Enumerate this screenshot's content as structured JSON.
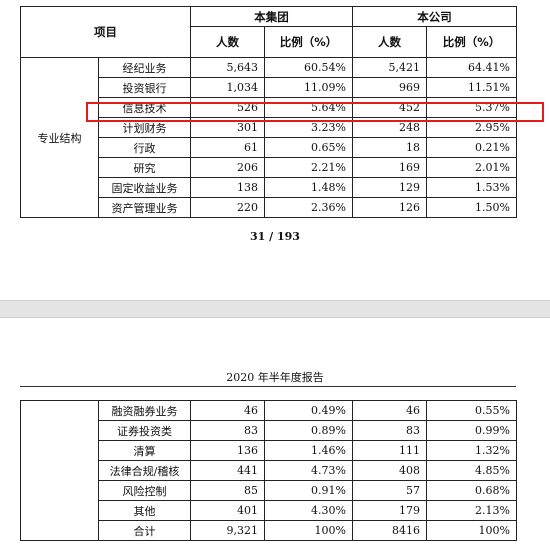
{
  "header": {
    "item": "项目",
    "group": "本集团",
    "company": "本公司",
    "count": "人数",
    "ratio": "比例（%）"
  },
  "category": "专业结构",
  "rows_page1": [
    {
      "label": "经纪业务",
      "g_count": "5,643",
      "g_ratio": "60.54%",
      "c_count": "5,421",
      "c_ratio": "64.41%"
    },
    {
      "label": "投资银行",
      "g_count": "1,034",
      "g_ratio": "11.09%",
      "c_count": "969",
      "c_ratio": "11.51%"
    },
    {
      "label": "信息技术",
      "g_count": "526",
      "g_ratio": "5.64%",
      "c_count": "452",
      "c_ratio": "5.37%"
    },
    {
      "label": "计划财务",
      "g_count": "301",
      "g_ratio": "3.23%",
      "c_count": "248",
      "c_ratio": "2.95%"
    },
    {
      "label": "行政",
      "g_count": "61",
      "g_ratio": "0.65%",
      "c_count": "18",
      "c_ratio": "0.21%"
    },
    {
      "label": "研究",
      "g_count": "206",
      "g_ratio": "2.21%",
      "c_count": "169",
      "c_ratio": "2.01%"
    },
    {
      "label": "固定收益业务",
      "g_count": "138",
      "g_ratio": "1.48%",
      "c_count": "129",
      "c_ratio": "1.53%"
    },
    {
      "label": "资产管理业务",
      "g_count": "220",
      "g_ratio": "2.36%",
      "c_count": "126",
      "c_ratio": "1.50%"
    }
  ],
  "page_number": "31 / 193",
  "report_title": "2020 年半年度报告",
  "rows_page2": [
    {
      "label": "融资融券业务",
      "g_count": "46",
      "g_ratio": "0.49%",
      "c_count": "46",
      "c_ratio": "0.55%"
    },
    {
      "label": "证券投资类",
      "g_count": "83",
      "g_ratio": "0.89%",
      "c_count": "83",
      "c_ratio": "0.99%"
    },
    {
      "label": "清算",
      "g_count": "136",
      "g_ratio": "1.46%",
      "c_count": "111",
      "c_ratio": "1.32%"
    },
    {
      "label": "法律合规/稽核",
      "g_count": "441",
      "g_ratio": "4.73%",
      "c_count": "408",
      "c_ratio": "4.85%"
    },
    {
      "label": "风险控制",
      "g_count": "85",
      "g_ratio": "0.91%",
      "c_count": "57",
      "c_ratio": "0.68%"
    },
    {
      "label": "其他",
      "g_count": "401",
      "g_ratio": "4.30%",
      "c_count": "179",
      "c_ratio": "2.13%"
    },
    {
      "label": "合计",
      "g_count": "9,321",
      "g_ratio": "100%",
      "c_count": "8416",
      "c_ratio": "100%"
    }
  ],
  "highlight_color": "#e21b1b"
}
